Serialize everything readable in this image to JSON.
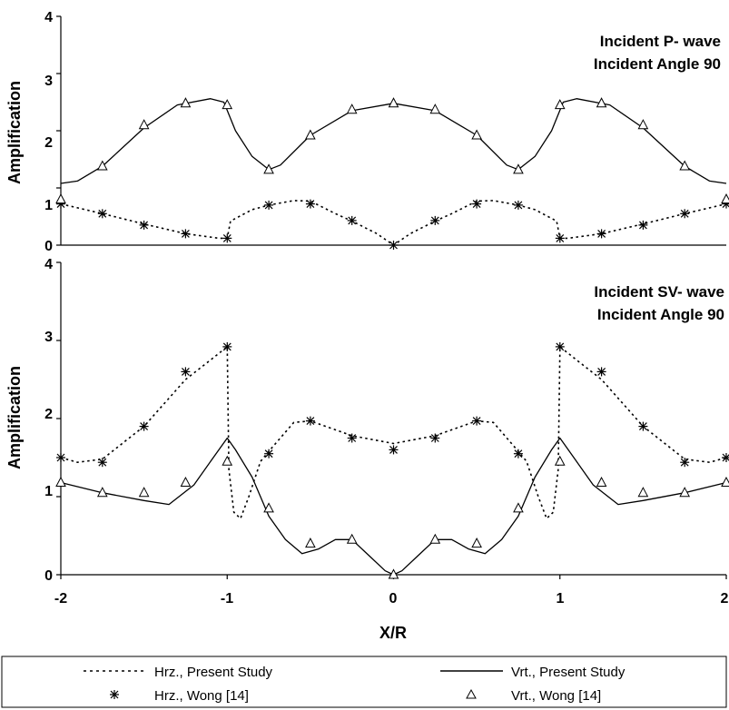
{
  "chart_data": [
    {
      "type": "line",
      "panel": "top",
      "annotation": [
        "Incident P- wave",
        "Incident Angle 90"
      ],
      "ylabel": "Amplification",
      "xlabel": "",
      "xlim": [
        -2,
        2
      ],
      "ylim": [
        0,
        4
      ],
      "yticks": [
        "0",
        "1",
        "2",
        "3",
        "4"
      ],
      "grid": false,
      "series": [
        {
          "name": "Hrz., Present Study",
          "style": "dotted-line",
          "points": [
            [
              -2.0,
              0.72
            ],
            [
              -1.75,
              0.55
            ],
            [
              -1.5,
              0.37
            ],
            [
              -1.25,
              0.2
            ],
            [
              -1.05,
              0.12
            ],
            [
              -1.0,
              0.12
            ],
            [
              -0.98,
              0.42
            ],
            [
              -0.85,
              0.62
            ],
            [
              -0.75,
              0.7
            ],
            [
              -0.6,
              0.78
            ],
            [
              -0.5,
              0.77
            ],
            [
              -0.35,
              0.55
            ],
            [
              -0.25,
              0.42
            ],
            [
              -0.1,
              0.2
            ],
            [
              0.0,
              0.0
            ],
            [
              0.1,
              0.2
            ],
            [
              0.25,
              0.42
            ],
            [
              0.35,
              0.55
            ],
            [
              0.5,
              0.77
            ],
            [
              0.6,
              0.78
            ],
            [
              0.75,
              0.7
            ],
            [
              0.85,
              0.62
            ],
            [
              0.98,
              0.42
            ],
            [
              1.0,
              0.12
            ],
            [
              1.05,
              0.12
            ],
            [
              1.25,
              0.2
            ],
            [
              1.5,
              0.37
            ],
            [
              1.75,
              0.55
            ],
            [
              2.0,
              0.72
            ]
          ]
        },
        {
          "name": "Vrt., Present Study",
          "style": "solid-line",
          "points": [
            [
              -2.0,
              1.08
            ],
            [
              -1.9,
              1.12
            ],
            [
              -1.75,
              1.38
            ],
            [
              -1.5,
              2.05
            ],
            [
              -1.3,
              2.45
            ],
            [
              -1.1,
              2.56
            ],
            [
              -1.02,
              2.5
            ],
            [
              -0.95,
              2.0
            ],
            [
              -0.85,
              1.55
            ],
            [
              -0.75,
              1.32
            ],
            [
              -0.68,
              1.4
            ],
            [
              -0.5,
              1.92
            ],
            [
              -0.25,
              2.35
            ],
            [
              0.0,
              2.48
            ],
            [
              0.25,
              2.35
            ],
            [
              0.5,
              1.92
            ],
            [
              0.68,
              1.4
            ],
            [
              0.75,
              1.32
            ],
            [
              0.85,
              1.55
            ],
            [
              0.95,
              2.0
            ],
            [
              1.02,
              2.5
            ],
            [
              1.1,
              2.56
            ],
            [
              1.3,
              2.45
            ],
            [
              1.5,
              2.05
            ],
            [
              1.75,
              1.38
            ],
            [
              1.9,
              1.12
            ],
            [
              2.0,
              1.08
            ]
          ]
        },
        {
          "name": "Hrz., Wong [14]",
          "style": "star-marker",
          "points": [
            [
              -2.0,
              0.72
            ],
            [
              -1.75,
              0.55
            ],
            [
              -1.5,
              0.35
            ],
            [
              -1.25,
              0.2
            ],
            [
              -1.0,
              0.12
            ],
            [
              -0.75,
              0.7
            ],
            [
              -0.5,
              0.72
            ],
            [
              -0.25,
              0.43
            ],
            [
              0.0,
              0.0
            ],
            [
              0.25,
              0.43
            ],
            [
              0.5,
              0.72
            ],
            [
              0.75,
              0.7
            ],
            [
              1.0,
              0.12
            ],
            [
              1.25,
              0.2
            ],
            [
              1.5,
              0.35
            ],
            [
              1.75,
              0.55
            ],
            [
              2.0,
              0.72
            ]
          ]
        },
        {
          "name": "Vrt., Wong [14]",
          "style": "triangle-marker",
          "points": [
            [
              -2.0,
              0.8
            ],
            [
              -1.75,
              1.38
            ],
            [
              -1.5,
              2.1
            ],
            [
              -1.25,
              2.48
            ],
            [
              -1.0,
              2.45
            ],
            [
              -0.75,
              1.32
            ],
            [
              -0.5,
              1.92
            ],
            [
              -0.25,
              2.37
            ],
            [
              0.0,
              2.48
            ],
            [
              0.25,
              2.37
            ],
            [
              0.5,
              1.92
            ],
            [
              0.75,
              1.32
            ],
            [
              1.0,
              2.45
            ],
            [
              1.25,
              2.48
            ],
            [
              1.5,
              2.1
            ],
            [
              1.75,
              1.38
            ],
            [
              2.0,
              0.8
            ]
          ]
        }
      ]
    },
    {
      "type": "line",
      "panel": "bottom",
      "annotation": [
        "Incident SV- wave",
        "Incident Angle 90"
      ],
      "ylabel": "Amplification",
      "xlabel": "X/R",
      "xlim": [
        -2,
        2
      ],
      "ylim": [
        0,
        4
      ],
      "xticks": [
        "-2",
        "-1",
        "0",
        "1",
        "2"
      ],
      "yticks": [
        "0",
        "1",
        "2",
        "3",
        "4"
      ],
      "grid": false,
      "series": [
        {
          "name": "Hrz., Present Study",
          "style": "dotted-line",
          "points": [
            [
              -2.0,
              1.5
            ],
            [
              -1.9,
              1.44
            ],
            [
              -1.75,
              1.48
            ],
            [
              -1.5,
              1.9
            ],
            [
              -1.25,
              2.5
            ],
            [
              -1.1,
              2.75
            ],
            [
              -1.0,
              2.92
            ],
            [
              -0.99,
              1.35
            ],
            [
              -0.96,
              0.8
            ],
            [
              -0.92,
              0.72
            ],
            [
              -0.87,
              1.0
            ],
            [
              -0.8,
              1.45
            ],
            [
              -0.75,
              1.58
            ],
            [
              -0.6,
              1.95
            ],
            [
              -0.5,
              1.97
            ],
            [
              -0.25,
              1.78
            ],
            [
              0.0,
              1.68
            ],
            [
              0.25,
              1.78
            ],
            [
              0.5,
              1.97
            ],
            [
              0.6,
              1.95
            ],
            [
              0.75,
              1.58
            ],
            [
              0.8,
              1.45
            ],
            [
              0.87,
              1.0
            ],
            [
              0.92,
              0.72
            ],
            [
              0.96,
              0.8
            ],
            [
              0.99,
              1.35
            ],
            [
              1.0,
              2.92
            ],
            [
              1.1,
              2.75
            ],
            [
              1.25,
              2.5
            ],
            [
              1.5,
              1.9
            ],
            [
              1.75,
              1.48
            ],
            [
              1.9,
              1.44
            ],
            [
              2.0,
              1.5
            ]
          ]
        },
        {
          "name": "Vrt., Present Study",
          "style": "solid-line",
          "points": [
            [
              -2.0,
              1.18
            ],
            [
              -1.75,
              1.05
            ],
            [
              -1.5,
              0.95
            ],
            [
              -1.35,
              0.9
            ],
            [
              -1.2,
              1.15
            ],
            [
              -1.1,
              1.45
            ],
            [
              -1.0,
              1.75
            ],
            [
              -0.95,
              1.6
            ],
            [
              -0.85,
              1.25
            ],
            [
              -0.75,
              0.75
            ],
            [
              -0.65,
              0.45
            ],
            [
              -0.55,
              0.27
            ],
            [
              -0.45,
              0.33
            ],
            [
              -0.35,
              0.45
            ],
            [
              -0.25,
              0.45
            ],
            [
              -0.15,
              0.25
            ],
            [
              -0.05,
              0.05
            ],
            [
              0.0,
              0.0
            ],
            [
              0.05,
              0.05
            ],
            [
              0.15,
              0.25
            ],
            [
              0.25,
              0.45
            ],
            [
              0.35,
              0.45
            ],
            [
              0.45,
              0.33
            ],
            [
              0.55,
              0.27
            ],
            [
              0.65,
              0.45
            ],
            [
              0.75,
              0.75
            ],
            [
              0.85,
              1.25
            ],
            [
              0.95,
              1.6
            ],
            [
              1.0,
              1.75
            ],
            [
              1.1,
              1.45
            ],
            [
              1.2,
              1.15
            ],
            [
              1.35,
              0.9
            ],
            [
              1.5,
              0.95
            ],
            [
              1.75,
              1.05
            ],
            [
              2.0,
              1.18
            ]
          ]
        },
        {
          "name": "Hrz., Wong [14]",
          "style": "star-marker",
          "points": [
            [
              -2.0,
              1.5
            ],
            [
              -1.75,
              1.44
            ],
            [
              -1.5,
              1.9
            ],
            [
              -1.25,
              2.6
            ],
            [
              -1.0,
              2.92
            ],
            [
              -0.75,
              1.55
            ],
            [
              -0.5,
              1.97
            ],
            [
              -0.25,
              1.75
            ],
            [
              0.0,
              1.6
            ],
            [
              0.25,
              1.75
            ],
            [
              0.5,
              1.97
            ],
            [
              0.75,
              1.55
            ],
            [
              1.0,
              2.92
            ],
            [
              1.25,
              2.6
            ],
            [
              1.5,
              1.9
            ],
            [
              1.75,
              1.44
            ],
            [
              2.0,
              1.5
            ]
          ]
        },
        {
          "name": "Vrt., Wong [14]",
          "style": "triangle-marker",
          "points": [
            [
              -2.0,
              1.18
            ],
            [
              -1.75,
              1.05
            ],
            [
              -1.5,
              1.05
            ],
            [
              -1.25,
              1.18
            ],
            [
              -1.0,
              1.45
            ],
            [
              -0.75,
              0.85
            ],
            [
              -0.5,
              0.4
            ],
            [
              -0.25,
              0.45
            ],
            [
              0.0,
              0.0
            ],
            [
              0.25,
              0.45
            ],
            [
              0.5,
              0.4
            ],
            [
              0.75,
              0.85
            ],
            [
              1.0,
              1.45
            ],
            [
              1.25,
              1.18
            ],
            [
              1.5,
              1.05
            ],
            [
              1.75,
              1.05
            ],
            [
              2.0,
              1.18
            ]
          ]
        }
      ]
    }
  ],
  "legend": {
    "placement": "bottom",
    "entries": [
      {
        "label": "Hrz., Present Study",
        "style": "dotted-line"
      },
      {
        "label": "Vrt., Present Study",
        "style": "solid-line"
      },
      {
        "label": "Hrz., Wong [14]",
        "style": "star-marker"
      },
      {
        "label": "Vrt., Wong [14]",
        "style": "triangle-marker"
      }
    ]
  },
  "colors": {
    "line": "#000000",
    "background": "#ffffff"
  }
}
